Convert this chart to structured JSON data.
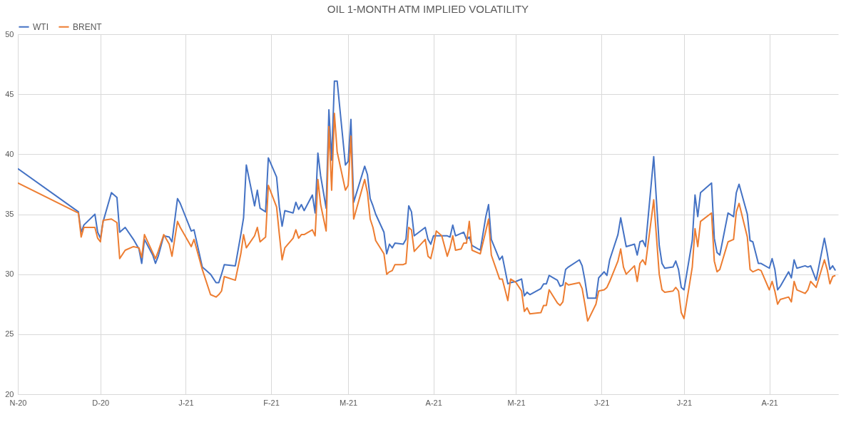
{
  "chart_data": {
    "type": "line",
    "title": "OIL 1-MONTH ATM IMPLIED VOLATILITY",
    "x": [
      "2020-11-01",
      "2020-11-23",
      "2020-11-24",
      "2020-11-25",
      "2020-11-29",
      "2020-11-30",
      "2020-12-01",
      "2020-12-02",
      "2020-12-05",
      "2020-12-07",
      "2020-12-08",
      "2020-12-10",
      "2020-12-13",
      "2020-12-15",
      "2020-12-16",
      "2020-12-17",
      "2020-12-20",
      "2020-12-21",
      "2020-12-22",
      "2020-12-24",
      "2020-12-26",
      "2020-12-27",
      "2020-12-29",
      "2020-12-30",
      "2021-01-03",
      "2021-01-04",
      "2021-01-07",
      "2021-01-10",
      "2021-01-12",
      "2021-01-13",
      "2021-01-14",
      "2021-01-15",
      "2021-01-19",
      "2021-01-21",
      "2021-01-22",
      "2021-01-23",
      "2021-01-26",
      "2021-01-27",
      "2021-01-28",
      "2021-01-30",
      "2021-01-31",
      "2021-02-03",
      "2021-02-04",
      "2021-02-05",
      "2021-02-06",
      "2021-02-09",
      "2021-02-10",
      "2021-02-11",
      "2021-02-12",
      "2021-02-13",
      "2021-02-16",
      "2021-02-17",
      "2021-02-18",
      "2021-02-19",
      "2021-02-21",
      "2021-02-22",
      "2021-02-23",
      "2021-02-24",
      "2021-02-25",
      "2021-02-28",
      "2021-03-01",
      "2021-03-02",
      "2021-03-03",
      "2021-03-07",
      "2021-03-08",
      "2021-03-09",
      "2021-03-10",
      "2021-03-11",
      "2021-03-14",
      "2021-03-15",
      "2021-03-16",
      "2021-03-17",
      "2021-03-18",
      "2021-03-21",
      "2021-03-22",
      "2021-03-23",
      "2021-03-24",
      "2021-03-25",
      "2021-03-29",
      "2021-03-30",
      "2021-03-31",
      "2021-04-01",
      "2021-04-02",
      "2021-04-04",
      "2021-04-06",
      "2021-04-07",
      "2021-04-08",
      "2021-04-09",
      "2021-04-11",
      "2021-04-12",
      "2021-04-13",
      "2021-04-14",
      "2021-04-15",
      "2021-04-18",
      "2021-04-20",
      "2021-04-21",
      "2021-04-22",
      "2021-04-25",
      "2021-04-26",
      "2021-04-28",
      "2021-04-29",
      "2021-05-01",
      "2021-05-03",
      "2021-05-04",
      "2021-05-05",
      "2021-05-06",
      "2021-05-10",
      "2021-05-11",
      "2021-05-12",
      "2021-05-13",
      "2021-05-16",
      "2021-05-17",
      "2021-05-18",
      "2021-05-19",
      "2021-05-20",
      "2021-05-24",
      "2021-05-25",
      "2021-05-26",
      "2021-05-27",
      "2021-05-30",
      "2021-05-31",
      "2021-06-02",
      "2021-06-03",
      "2021-06-04",
      "2021-06-07",
      "2021-06-08",
      "2021-06-09",
      "2021-06-10",
      "2021-06-13",
      "2021-06-14",
      "2021-06-15",
      "2021-06-16",
      "2021-06-17",
      "2021-06-20",
      "2021-06-22",
      "2021-06-23",
      "2021-06-24",
      "2021-06-27",
      "2021-06-28",
      "2021-06-29",
      "2021-06-30",
      "2021-07-01",
      "2021-07-04",
      "2021-07-05",
      "2021-07-06",
      "2021-07-07",
      "2021-07-11",
      "2021-07-12",
      "2021-07-13",
      "2021-07-14",
      "2021-07-17",
      "2021-07-19",
      "2021-07-20",
      "2021-07-21",
      "2021-07-24",
      "2021-07-25",
      "2021-07-26",
      "2021-07-28",
      "2021-07-29",
      "2021-08-01",
      "2021-08-02",
      "2021-08-03",
      "2021-08-04",
      "2021-08-05",
      "2021-08-08",
      "2021-08-09",
      "2021-08-10",
      "2021-08-11",
      "2021-08-14",
      "2021-08-15",
      "2021-08-16",
      "2021-08-18",
      "2021-08-21",
      "2021-08-22",
      "2021-08-23",
      "2021-08-24",
      "2021-08-25"
    ],
    "series": [
      {
        "name": "WTI",
        "color": "#4472c4",
        "values": [
          38.8,
          35.2,
          33.5,
          34.1,
          35.0,
          33.5,
          33.0,
          34.4,
          36.8,
          36.4,
          33.5,
          33.9,
          32.9,
          32.1,
          30.9,
          32.9,
          31.6,
          30.9,
          31.5,
          33.2,
          33.1,
          32.7,
          36.3,
          35.9,
          33.6,
          33.7,
          30.6,
          30.0,
          29.3,
          29.3,
          30.0,
          30.8,
          30.7,
          33.3,
          34.7,
          39.1,
          35.7,
          37.0,
          35.5,
          35.2,
          39.7,
          38.1,
          35.6,
          34.0,
          35.3,
          35.1,
          36.0,
          35.4,
          35.8,
          35.3,
          36.6,
          35.1,
          40.1,
          38.2,
          35.5,
          43.7,
          39.5,
          46.1,
          46.1,
          39.1,
          39.4,
          42.9,
          36.0,
          39.0,
          38.3,
          36.3,
          35.7,
          35.0,
          33.5,
          31.7,
          32.5,
          32.2,
          32.6,
          32.5,
          32.9,
          35.7,
          35.2,
          33.2,
          33.9,
          32.9,
          32.5,
          33.2,
          33.2,
          33.2,
          33.2,
          33.1,
          34.1,
          33.2,
          33.4,
          33.5,
          32.9,
          33.1,
          32.4,
          32.0,
          34.8,
          35.8,
          32.9,
          31.2,
          31.5,
          29.2,
          29.3,
          29.4,
          29.6,
          28.2,
          28.5,
          28.3,
          28.8,
          29.2,
          29.2,
          29.9,
          29.5,
          29.0,
          29.1,
          30.4,
          30.6,
          31.2,
          30.7,
          29.5,
          28.0,
          28.0,
          29.7,
          30.2,
          29.9,
          31.2,
          33.3,
          34.7,
          33.5,
          32.3,
          32.5,
          31.6,
          32.7,
          32.8,
          32.3,
          39.8,
          32.4,
          30.9,
          30.5,
          30.6,
          31.1,
          30.4,
          28.9,
          28.7,
          32.8,
          36.6,
          34.8,
          36.8,
          37.6,
          33.0,
          31.8,
          31.6,
          35.1,
          34.8,
          36.8,
          37.5,
          35.0,
          32.8,
          32.7,
          30.9,
          30.9,
          30.5,
          31.3,
          30.4,
          28.7,
          29.0,
          30.2,
          29.7,
          31.2,
          30.5,
          30.7,
          30.6,
          30.7,
          29.5,
          33.0,
          31.8,
          30.4,
          30.7,
          30.3
        ]
      },
      {
        "name": "BRENT",
        "color": "#ed7d31",
        "values": [
          37.6,
          35.1,
          33.1,
          33.9,
          33.9,
          33.0,
          32.7,
          34.5,
          34.6,
          34.3,
          31.3,
          32.0,
          32.3,
          32.2,
          31.4,
          33.3,
          31.8,
          31.3,
          31.9,
          33.3,
          32.5,
          31.5,
          34.4,
          33.9,
          32.3,
          32.9,
          30.4,
          28.3,
          28.1,
          28.3,
          28.6,
          29.8,
          29.5,
          31.7,
          33.3,
          32.2,
          33.2,
          33.9,
          32.7,
          33.1,
          37.4,
          35.6,
          33.3,
          31.2,
          32.2,
          33.0,
          33.7,
          33.0,
          33.3,
          33.3,
          33.7,
          33.2,
          37.9,
          35.8,
          33.6,
          42.3,
          37.0,
          43.4,
          40.2,
          37.0,
          37.4,
          41.5,
          34.6,
          37.9,
          36.8,
          34.6,
          33.9,
          32.8,
          31.7,
          30.0,
          30.2,
          30.3,
          30.8,
          30.8,
          30.9,
          33.9,
          33.7,
          31.9,
          32.9,
          31.5,
          31.3,
          32.3,
          33.6,
          33.2,
          31.5,
          32.2,
          33.2,
          32.0,
          32.1,
          32.6,
          32.6,
          34.4,
          32.0,
          31.7,
          33.6,
          34.6,
          31.6,
          29.6,
          29.6,
          27.8,
          29.6,
          29.3,
          28.6,
          26.9,
          27.2,
          26.7,
          26.8,
          27.4,
          27.4,
          28.7,
          27.6,
          27.4,
          27.7,
          29.3,
          29.1,
          29.3,
          28.8,
          27.5,
          26.1,
          27.5,
          28.6,
          28.7,
          28.9,
          29.4,
          31.1,
          32.1,
          30.6,
          30.0,
          30.7,
          29.4,
          30.9,
          31.2,
          30.8,
          36.2,
          30.0,
          28.7,
          28.5,
          28.6,
          28.9,
          28.6,
          26.8,
          26.3,
          30.6,
          33.8,
          32.3,
          34.4,
          35.1,
          31.1,
          30.2,
          30.4,
          32.7,
          32.9,
          35.2,
          35.9,
          33.1,
          30.4,
          30.2,
          30.4,
          30.3,
          28.7,
          29.4,
          28.6,
          27.5,
          27.9,
          28.1,
          27.7,
          29.4,
          28.7,
          28.4,
          28.7,
          29.4,
          28.9,
          31.2,
          30.4,
          29.2,
          29.8,
          29.9
        ]
      }
    ],
    "xlim": [
      "2020-11-01",
      "2021-08-26"
    ],
    "xticks": [
      {
        "value": "2020-11-01",
        "label": "N-20"
      },
      {
        "value": "2020-12-01",
        "label": "D-20"
      },
      {
        "value": "2021-01-01",
        "label": "J-21"
      },
      {
        "value": "2021-02-01",
        "label": "F-21"
      },
      {
        "value": "2021-03-01",
        "label": "M-21"
      },
      {
        "value": "2021-04-01",
        "label": "A-21"
      },
      {
        "value": "2021-05-01",
        "label": "M-21"
      },
      {
        "value": "2021-06-01",
        "label": "J-21"
      },
      {
        "value": "2021-07-01",
        "label": "J-21"
      },
      {
        "value": "2021-08-01",
        "label": "A-21"
      }
    ],
    "ylim": [
      20,
      50
    ],
    "yticks": [
      20,
      25,
      30,
      35,
      40,
      45,
      50
    ],
    "grid": true,
    "legend": "top",
    "line_style": "solid",
    "marker": "none"
  }
}
